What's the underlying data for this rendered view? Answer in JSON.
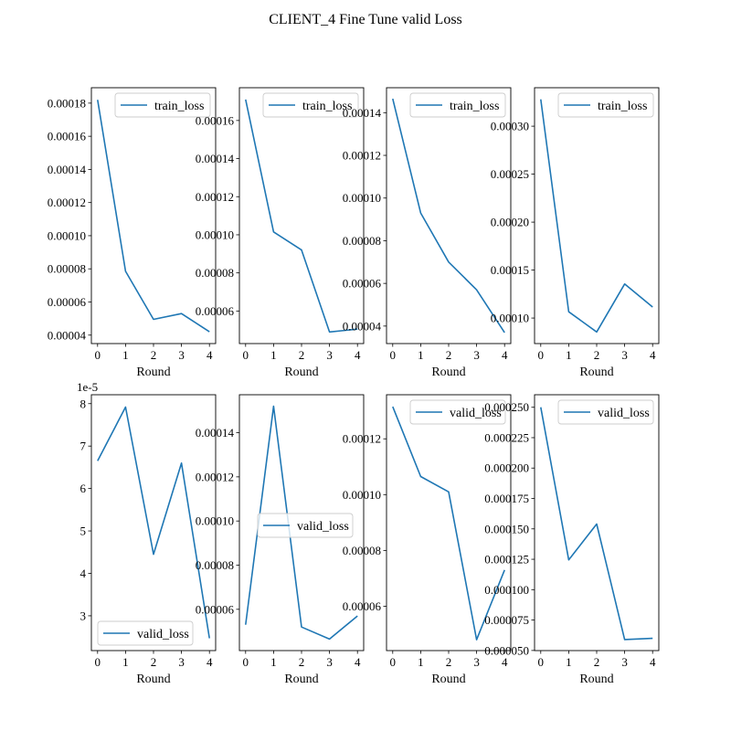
{
  "figure": {
    "title": "CLIENT_4 Fine Tune valid Loss",
    "line_color": "#1f77b4"
  },
  "chart_data": [
    {
      "type": "line",
      "row": 0,
      "col": 0,
      "xlabel": "Round",
      "ylabel": "",
      "x": [
        0,
        1,
        2,
        3,
        4
      ],
      "series": [
        {
          "name": "train_loss",
          "values": [
            0.000182,
            7.85e-05,
            4.95e-05,
            5.3e-05,
            4.2e-05
          ]
        }
      ],
      "ylim": [
        3.49e-05,
        0.0001893
      ],
      "legend": "upper right",
      "yticks": [
        4e-05,
        6e-05,
        8e-05,
        0.0001,
        0.00012,
        0.00014,
        0.00016,
        0.00018
      ],
      "yticklabels": [
        "0.00004",
        "0.00006",
        "0.00008",
        "0.00010",
        "0.00012",
        "0.00014",
        "0.00016",
        "0.00018"
      ],
      "xticks": [
        0,
        1,
        2,
        3,
        4
      ],
      "xticklabels": [
        "0",
        "1",
        "2",
        "3",
        "4"
      ],
      "offset": ""
    },
    {
      "type": "line",
      "row": 0,
      "col": 1,
      "xlabel": "Round",
      "ylabel": "",
      "x": [
        0,
        1,
        2,
        3,
        4
      ],
      "series": [
        {
          "name": "train_loss",
          "values": [
            0.000171,
            0.0001015,
            9.2e-05,
            4.9e-05,
            5.05e-05
          ]
        }
      ],
      "ylim": [
        4.29e-05,
        0.0001772
      ],
      "legend": "upper right",
      "yticks": [
        6e-05,
        8e-05,
        0.0001,
        0.00012,
        0.00014,
        0.00016
      ],
      "yticklabels": [
        "0.00006",
        "0.00008",
        "0.00010",
        "0.00012",
        "0.00014",
        "0.00016"
      ],
      "xticks": [
        0,
        1,
        2,
        3,
        4
      ],
      "xticklabels": [
        "0",
        "1",
        "2",
        "3",
        "4"
      ],
      "offset": ""
    },
    {
      "type": "line",
      "row": 0,
      "col": 2,
      "xlabel": "Round",
      "ylabel": "",
      "x": [
        0,
        1,
        2,
        3,
        4
      ],
      "series": [
        {
          "name": "train_loss",
          "values": [
            0.0001465,
            9.3e-05,
            7e-05,
            5.7e-05,
            3.7e-05
          ]
        }
      ],
      "ylim": [
        3.18e-05,
        0.0001517
      ],
      "legend": "upper right",
      "yticks": [
        4e-05,
        6e-05,
        8e-05,
        0.0001,
        0.00012,
        0.00014
      ],
      "yticklabels": [
        "0.00004",
        "0.00006",
        "0.00008",
        "0.00010",
        "0.00012",
        "0.00014"
      ],
      "xticks": [
        0,
        1,
        2,
        3,
        4
      ],
      "xticklabels": [
        "0",
        "1",
        "2",
        "3",
        "4"
      ],
      "offset": ""
    },
    {
      "type": "line",
      "row": 0,
      "col": 3,
      "xlabel": "Round",
      "ylabel": "",
      "x": [
        0,
        1,
        2,
        3,
        4
      ],
      "series": [
        {
          "name": "train_loss",
          "values": [
            0.000328,
            0.0001065,
            8.55e-05,
            0.0001355,
            0.0001115
          ]
        }
      ],
      "ylim": [
        7.34e-05,
        0.0003401
      ],
      "legend": "upper right",
      "yticks": [
        0.0001,
        0.00015,
        0.0002,
        0.00025,
        0.0003
      ],
      "yticklabels": [
        "0.00010",
        "0.00015",
        "0.00020",
        "0.00025",
        "0.00030"
      ],
      "xticks": [
        0,
        1,
        2,
        3,
        4
      ],
      "xticklabels": [
        "0",
        "1",
        "2",
        "3",
        "4"
      ],
      "offset": ""
    },
    {
      "type": "line",
      "row": 1,
      "col": 0,
      "xlabel": "Round",
      "ylabel": "",
      "x": [
        0,
        1,
        2,
        3,
        4
      ],
      "series": [
        {
          "name": "valid_loss",
          "values": [
            6.65,
            7.92,
            4.45,
            6.6,
            2.47
          ]
        }
      ],
      "ylim": [
        2.18,
        8.21
      ],
      "legend": "lower right",
      "yticks": [
        3,
        4,
        5,
        6,
        7,
        8
      ],
      "yticklabels": [
        "3",
        "4",
        "5",
        "6",
        "7",
        "8"
      ],
      "xticks": [
        0,
        1,
        2,
        3,
        4
      ],
      "xticklabels": [
        "0",
        "1",
        "2",
        "3",
        "4"
      ],
      "offset": "1e-5"
    },
    {
      "type": "line",
      "row": 1,
      "col": 1,
      "xlabel": "Round",
      "ylabel": "",
      "x": [
        0,
        1,
        2,
        3,
        4
      ],
      "series": [
        {
          "name": "valid_loss",
          "values": [
            5.3e-05,
            0.000152,
            5.2e-05,
            4.65e-05,
            5.7e-05
          ]
        }
      ],
      "ylim": [
        4.13e-05,
        0.0001572
      ],
      "legend": "center right",
      "yticks": [
        6e-05,
        8e-05,
        0.0001,
        0.00012,
        0.00014
      ],
      "yticklabels": [
        "0.00006",
        "0.00008",
        "0.00010",
        "0.00012",
        "0.00014"
      ],
      "xticks": [
        0,
        1,
        2,
        3,
        4
      ],
      "xticklabels": [
        "0",
        "1",
        "2",
        "3",
        "4"
      ],
      "offset": ""
    },
    {
      "type": "line",
      "row": 1,
      "col": 2,
      "xlabel": "Round",
      "ylabel": "",
      "x": [
        0,
        1,
        2,
        3,
        4
      ],
      "series": [
        {
          "name": "valid_loss",
          "values": [
            0.0001315,
            0.0001065,
            0.000101,
            4.8e-05,
            7.3e-05
          ]
        }
      ],
      "ylim": [
        4.41e-05,
        0.0001358
      ],
      "legend": "upper right",
      "yticks": [
        6e-05,
        8e-05,
        0.0001,
        0.00012
      ],
      "yticklabels": [
        "0.00006",
        "0.00008",
        "0.00010",
        "0.00012"
      ],
      "xticks": [
        0,
        1,
        2,
        3,
        4
      ],
      "xticklabels": [
        "0",
        "1",
        "2",
        "3",
        "4"
      ],
      "offset": ""
    },
    {
      "type": "line",
      "row": 1,
      "col": 3,
      "xlabel": "Round",
      "ylabel": "",
      "x": [
        0,
        1,
        2,
        3,
        4
      ],
      "series": [
        {
          "name": "valid_loss",
          "values": [
            0.00025,
            0.0001245,
            0.000154,
            5.9e-05,
            6e-05
          ]
        }
      ],
      "ylim": [
        4.99e-05,
        0.0002603
      ],
      "legend": "upper right",
      "yticks": [
        5e-05,
        7.5e-05,
        0.0001,
        0.000125,
        0.00015,
        0.000175,
        0.0002,
        0.000225,
        0.00025
      ],
      "yticklabels": [
        "0.000050",
        "0.000075",
        "0.000100",
        "0.000125",
        "0.000150",
        "0.000175",
        "0.000200",
        "0.000225",
        "0.000250"
      ],
      "xticks": [
        0,
        1,
        2,
        3,
        4
      ],
      "xticklabels": [
        "0",
        "1",
        "2",
        "3",
        "4"
      ],
      "offset": ""
    }
  ]
}
